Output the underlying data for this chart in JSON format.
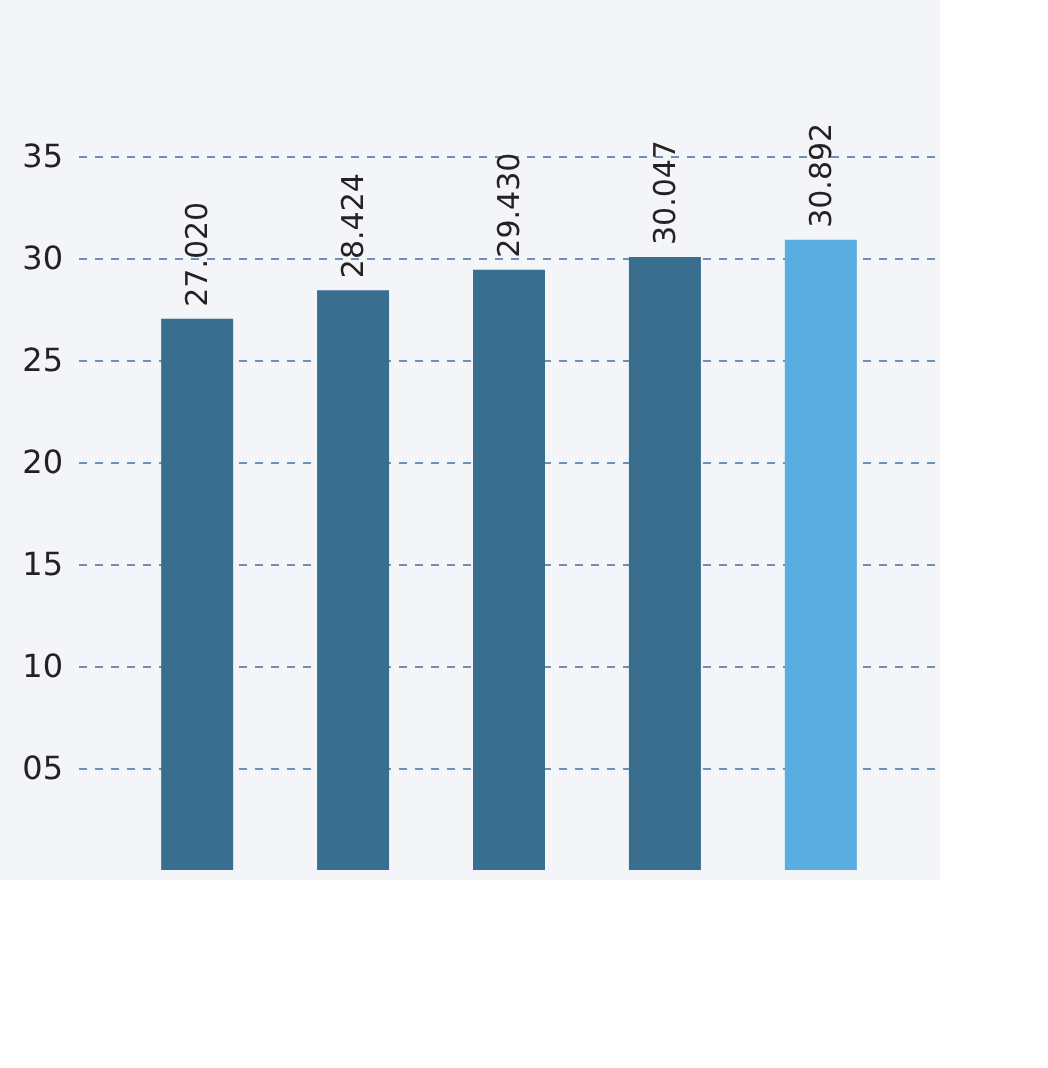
{
  "chart_data": {
    "type": "bar",
    "categories": [
      null,
      null,
      null,
      null,
      null
    ],
    "values": [
      27.02,
      28.424,
      29.43,
      30.047,
      30.892
    ],
    "value_labels": [
      "27.020",
      "28.424",
      "29.430",
      "30.047",
      "30.892"
    ],
    "colors": [
      "#3a6e8f",
      "#3a6e8f",
      "#3a6e8f",
      "#3a6e8f",
      "#5aade0"
    ],
    "ylim": [
      0,
      35
    ],
    "yticks": [
      {
        "value": 5,
        "label": "05"
      },
      10,
      15,
      20,
      25,
      30,
      35
    ],
    "grid": "y"
  }
}
